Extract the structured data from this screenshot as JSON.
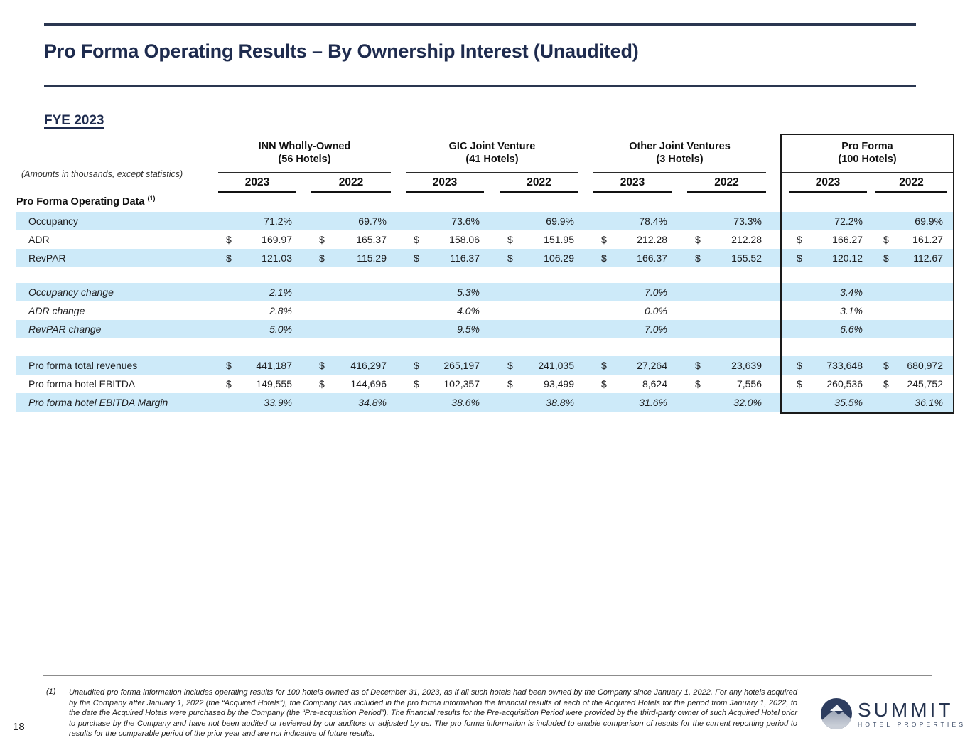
{
  "slide": {
    "title": "Pro Forma Operating Results – By Ownership Interest (Unaudited)",
    "section_heading": "FYE 2023",
    "amounts_note": "(Amounts in thousands, except statistics)",
    "table_title": "Pro Forma Operating Data",
    "table_title_footnote_ref": "(1)",
    "page_number": "18"
  },
  "colors": {
    "accent_navy": "#1e2b4e",
    "row_highlight": "#cdeaf9"
  },
  "table": {
    "groups": [
      {
        "name": "INN Wholly-Owned",
        "subtitle": "(56 Hotels)",
        "years": [
          "2023",
          "2022"
        ]
      },
      {
        "name": "GIC Joint Venture",
        "subtitle": "(41 Hotels)",
        "years": [
          "2023",
          "2022"
        ]
      },
      {
        "name": "Other Joint Ventures",
        "subtitle": "(3 Hotels)",
        "years": [
          "2023",
          "2022"
        ]
      },
      {
        "name": "Pro Forma",
        "subtitle": "(100 Hotels)",
        "years": [
          "2023",
          "2022"
        ],
        "boxed": true
      }
    ],
    "rows": [
      {
        "label": "Occupancy",
        "shaded": true,
        "italic": false,
        "dollar": false,
        "values": [
          "71.2%",
          "69.7%",
          "73.6%",
          "69.9%",
          "78.4%",
          "73.3%",
          "72.2%",
          "69.9%"
        ]
      },
      {
        "label": "ADR",
        "shaded": false,
        "italic": false,
        "dollar": true,
        "values": [
          "169.97",
          "165.37",
          "158.06",
          "151.95",
          "212.28",
          "212.28",
          "166.27",
          "161.27"
        ]
      },
      {
        "label": "RevPAR",
        "shaded": true,
        "italic": false,
        "dollar": true,
        "values": [
          "121.03",
          "115.29",
          "116.37",
          "106.29",
          "166.37",
          "155.52",
          "120.12",
          "112.67"
        ]
      },
      {
        "blank": true,
        "height": 22
      },
      {
        "label": "Occupancy change",
        "shaded": true,
        "italic": true,
        "dollar": false,
        "values": [
          "2.1%",
          "",
          "5.3%",
          "",
          "7.0%",
          "",
          "3.4%",
          ""
        ]
      },
      {
        "label": "ADR change",
        "shaded": false,
        "italic": true,
        "dollar": false,
        "values": [
          "2.8%",
          "",
          "4.0%",
          "",
          "0.0%",
          "",
          "3.1%",
          ""
        ]
      },
      {
        "label": "RevPAR change",
        "shaded": true,
        "italic": true,
        "dollar": false,
        "values": [
          "5.0%",
          "",
          "9.5%",
          "",
          "7.0%",
          "",
          "6.6%",
          ""
        ]
      },
      {
        "blank": true,
        "height": 25
      },
      {
        "label": "Pro forma total revenues",
        "shaded": true,
        "italic": false,
        "dollar": true,
        "values": [
          "441,187",
          "416,297",
          "265,197",
          "241,035",
          "27,264",
          "23,639",
          "733,648",
          "680,972"
        ]
      },
      {
        "label": "Pro forma hotel EBITDA",
        "shaded": false,
        "italic": false,
        "dollar": true,
        "values": [
          "149,555",
          "144,696",
          "102,357",
          "93,499",
          "8,624",
          "7,556",
          "260,536",
          "245,752"
        ]
      },
      {
        "label": "Pro forma hotel EBITDA Margin",
        "shaded": true,
        "italic": true,
        "dollar": false,
        "values": [
          "33.9%",
          "34.8%",
          "38.6%",
          "38.8%",
          "31.6%",
          "32.0%",
          "35.5%",
          "36.1%"
        ]
      }
    ]
  },
  "footnote": {
    "marker": "(1)",
    "text": "Unaudited pro forma information includes operating results for 100 hotels owned as of December 31, 2023, as if all such hotels had been owned by the Company since January 1, 2022. For any hotels acquired by the Company after January 1, 2022 (the “Acquired Hotels”), the Company has included in the pro forma information the financial results of each of the Acquired Hotels for the period from January 1, 2022, to the date the Acquired Hotels were purchased by the Company (the “Pre-acquisition Period”). The financial results for the Pre-acquisition Period were provided by the third-party owner of such Acquired Hotel prior to purchase by the Company and have not been audited or reviewed by our auditors or adjusted by us. The pro forma information is included to enable comparison of results for the current reporting period to results for the comparable period of the prior year and are not indicative of future results."
  },
  "logo": {
    "name": "SUMMIT",
    "tagline": "HOTEL PROPERTIES"
  }
}
